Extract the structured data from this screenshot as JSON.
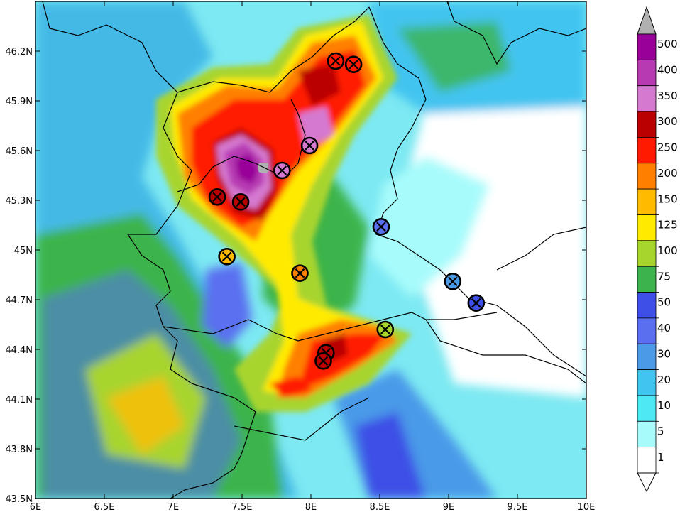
{
  "map": {
    "x_ticks": [
      "6E",
      "6.5E",
      "7E",
      "7.5E",
      "8E",
      "8.5E",
      "9E",
      "9.5E",
      "10E"
    ],
    "y_ticks": [
      "46.2N",
      "45.9N",
      "45.6N",
      "45.3N",
      "45N",
      "44.7N",
      "44.4N",
      "44.1N",
      "43.8N",
      "43.5N"
    ]
  },
  "legend": {
    "labels": [
      "500",
      "400",
      "350",
      "300",
      "250",
      "200",
      "150",
      "125",
      "100",
      "75",
      "50",
      "40",
      "30",
      "20",
      "10",
      "5",
      "1"
    ],
    "colors": [
      "#990099",
      "#b73ab3",
      "#d579d0",
      "#bb0000",
      "#ff1a00",
      "#ff8000",
      "#ffbb00",
      "#ffea00",
      "#a8d42e",
      "#3cb44b",
      "#3d4fe6",
      "#5a6ff0",
      "#4a9ae8",
      "#42c4f0",
      "#4ee8f5",
      "#a8fbfb",
      "#ffffff"
    ],
    "overflow_color": "#b0b0b0"
  },
  "stations": [
    {
      "lon": 8.18,
      "lat": 46.14,
      "color": "#ff1a00"
    },
    {
      "lon": 8.31,
      "lat": 46.12,
      "color": "#ff1a00"
    },
    {
      "lon": 7.99,
      "lat": 45.63,
      "color": "#d579d0"
    },
    {
      "lon": 7.79,
      "lat": 45.48,
      "color": "#d579d0"
    },
    {
      "lon": 7.32,
      "lat": 45.32,
      "color": "#bb0000"
    },
    {
      "lon": 7.49,
      "lat": 45.29,
      "color": "#bb0000"
    },
    {
      "lon": 7.39,
      "lat": 44.96,
      "color": "#ffbb00"
    },
    {
      "lon": 7.92,
      "lat": 44.86,
      "color": "#ff8000"
    },
    {
      "lon": 8.51,
      "lat": 45.14,
      "color": "#5a6ff0"
    },
    {
      "lon": 9.03,
      "lat": 44.81,
      "color": "#4a9ae8"
    },
    {
      "lon": 9.2,
      "lat": 44.68,
      "color": "#3d4fe6"
    },
    {
      "lon": 8.54,
      "lat": 44.52,
      "color": "#a8d42e"
    },
    {
      "lon": 8.11,
      "lat": 44.38,
      "color": "#bb0000"
    },
    {
      "lon": 8.09,
      "lat": 44.33,
      "color": "#bb0000"
    }
  ]
}
